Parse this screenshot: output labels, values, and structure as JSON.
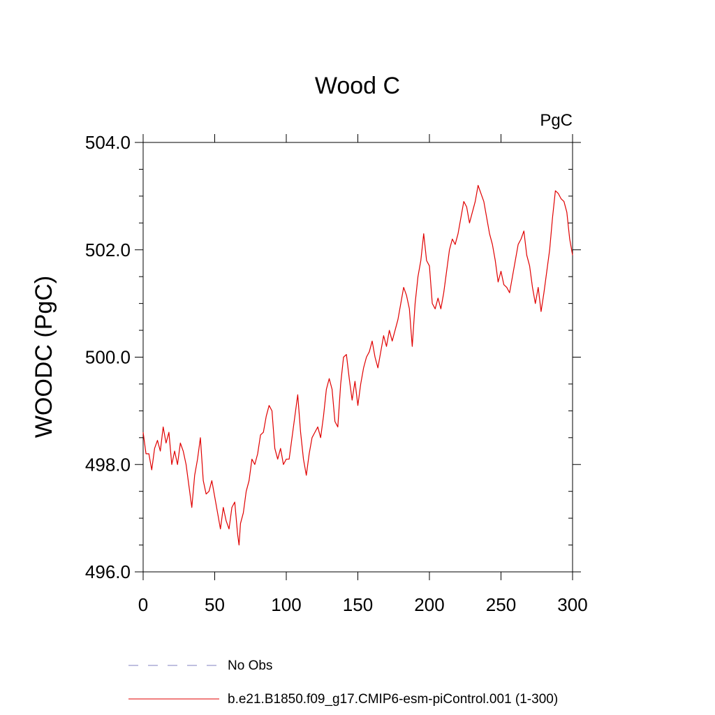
{
  "colors": {
    "series_line": "#e00000",
    "obs_line": "#8080c0",
    "axis": "#000000",
    "background": "#ffffff"
  },
  "chart_data": {
    "type": "line",
    "title": "Wood C",
    "units_label": "PgC",
    "xlabel": "",
    "ylabel": "WOODC  (PgC)",
    "xlim": [
      0,
      300
    ],
    "ylim": [
      496,
      504
    ],
    "x_ticks": [
      0,
      50,
      100,
      150,
      200,
      250,
      300
    ],
    "x_tick_labels": [
      "0",
      "50",
      "100",
      "150",
      "200",
      "250",
      "300"
    ],
    "y_ticks": [
      496,
      498,
      500,
      502,
      504
    ],
    "y_tick_labels": [
      "496.0",
      "498.0",
      "500.0",
      "502.0",
      "504.0"
    ],
    "y_minor_step": 0.5,
    "x_minor_step": 10,
    "grid": false,
    "legend_position": "bottom-left",
    "series": [
      {
        "name": "b.e21.B1850.f09_g17.CMIP6-esm-piControl.001 (1-300)",
        "style": "solid",
        "x": [
          0,
          2,
          4,
          6,
          8,
          10,
          12,
          14,
          16,
          18,
          20,
          22,
          24,
          26,
          28,
          30,
          32,
          34,
          36,
          38,
          40,
          42,
          44,
          46,
          48,
          50,
          52,
          54,
          56,
          58,
          60,
          62,
          64,
          66,
          67,
          68,
          70,
          72,
          74,
          76,
          78,
          80,
          82,
          84,
          86,
          88,
          90,
          92,
          94,
          96,
          98,
          100,
          102,
          104,
          106,
          108,
          110,
          112,
          114,
          116,
          118,
          120,
          122,
          124,
          126,
          128,
          130,
          132,
          134,
          136,
          138,
          140,
          142,
          144,
          146,
          148,
          150,
          152,
          154,
          156,
          158,
          160,
          162,
          164,
          166,
          168,
          170,
          172,
          174,
          176,
          178,
          180,
          182,
          184,
          186,
          188,
          190,
          192,
          194,
          196,
          198,
          200,
          202,
          204,
          206,
          208,
          210,
          212,
          214,
          216,
          218,
          220,
          222,
          224,
          226,
          228,
          230,
          232,
          234,
          236,
          238,
          240,
          242,
          244,
          246,
          248,
          250,
          252,
          254,
          256,
          258,
          260,
          262,
          264,
          266,
          268,
          270,
          272,
          274,
          276,
          278,
          280,
          282,
          284,
          286,
          288,
          290,
          292,
          294,
          296,
          298,
          300
        ],
        "values": [
          498.6,
          498.2,
          498.2,
          497.9,
          498.3,
          498.45,
          498.25,
          498.7,
          498.4,
          498.6,
          498.0,
          498.25,
          498.0,
          498.4,
          498.25,
          498.0,
          497.6,
          497.2,
          497.8,
          498.1,
          498.5,
          497.7,
          497.45,
          497.5,
          497.7,
          497.4,
          497.1,
          496.8,
          497.2,
          496.95,
          496.8,
          497.2,
          497.3,
          496.7,
          496.5,
          496.9,
          497.1,
          497.5,
          497.7,
          498.1,
          498.0,
          498.2,
          498.55,
          498.6,
          498.9,
          499.1,
          499.0,
          498.3,
          498.1,
          498.3,
          498.0,
          498.1,
          498.1,
          498.5,
          498.9,
          499.3,
          498.6,
          498.1,
          497.8,
          498.2,
          498.5,
          498.6,
          498.7,
          498.5,
          498.9,
          499.4,
          499.6,
          499.4,
          498.8,
          498.7,
          499.5,
          500.0,
          500.05,
          499.6,
          499.2,
          499.55,
          499.1,
          499.5,
          499.8,
          500.0,
          500.1,
          500.3,
          500.0,
          499.8,
          500.1,
          500.4,
          500.2,
          500.5,
          500.3,
          500.5,
          500.7,
          501.0,
          501.3,
          501.15,
          500.9,
          500.2,
          501.0,
          501.5,
          501.8,
          502.3,
          501.8,
          501.7,
          501.0,
          500.9,
          501.1,
          500.9,
          501.2,
          501.6,
          502.0,
          502.2,
          502.1,
          502.3,
          502.6,
          502.9,
          502.8,
          502.5,
          502.7,
          502.9,
          503.2,
          503.05,
          502.9,
          502.6,
          502.3,
          502.1,
          501.8,
          501.4,
          501.6,
          501.35,
          501.3,
          501.2,
          501.5,
          501.8,
          502.1,
          502.2,
          502.35,
          501.9,
          501.7,
          501.3,
          501.0,
          501.3,
          500.85,
          501.2,
          501.6,
          502.0,
          502.6,
          503.1,
          503.05,
          502.95,
          502.9,
          502.7,
          502.2,
          501.9
        ]
      },
      {
        "name": "No Obs",
        "style": "dashed",
        "x": [],
        "values": []
      }
    ]
  }
}
